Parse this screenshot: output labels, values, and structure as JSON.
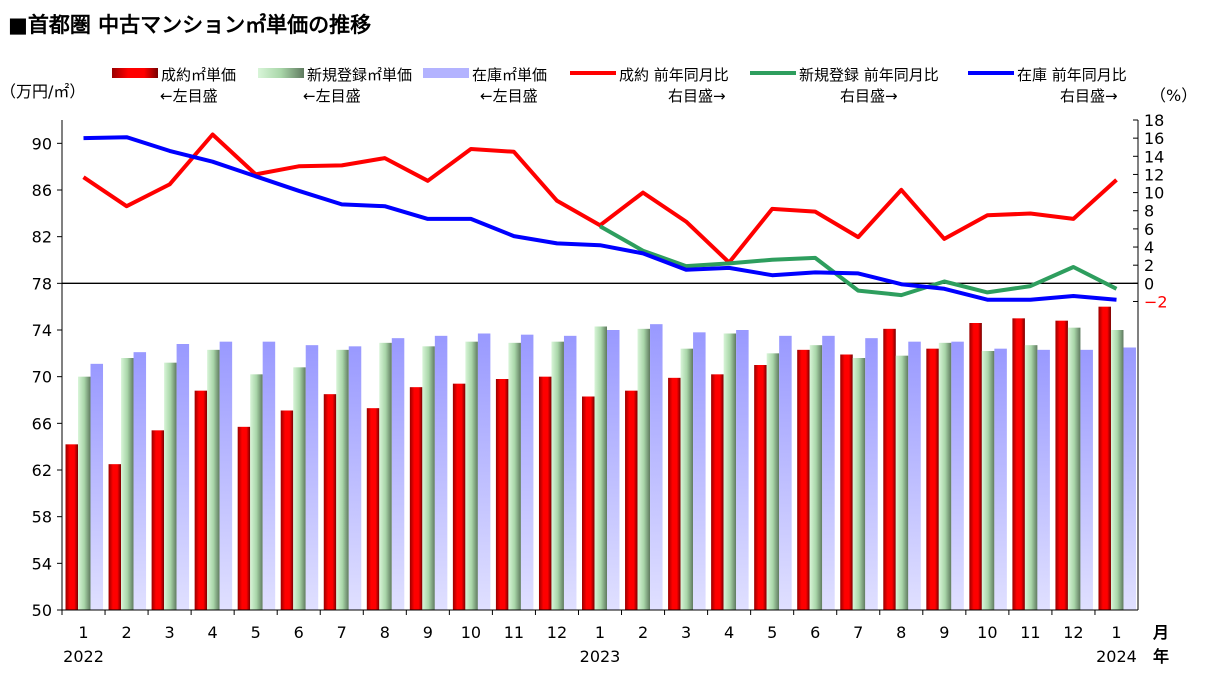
{
  "chart_data": {
    "type": "bar+line",
    "title": "■首都圏 中古マンション㎡単価の推移",
    "left_axis": {
      "unit": "（万円/㎡）",
      "range": [
        50,
        92
      ],
      "ticks": [
        50,
        54,
        58,
        62,
        66,
        70,
        74,
        78,
        82,
        86,
        90
      ]
    },
    "right_axis": {
      "unit": "（%）",
      "range": [
        -36,
        18
      ],
      "ticks": [
        18,
        16,
        14,
        12,
        10,
        8,
        6,
        4,
        2,
        0,
        -2
      ],
      "negative_tick_color": "#ff0000"
    },
    "x_unit_month": "月",
    "x_unit_year": "年",
    "categories": [
      "1",
      "2",
      "3",
      "4",
      "5",
      "6",
      "7",
      "8",
      "9",
      "10",
      "11",
      "12",
      "1",
      "2",
      "3",
      "4",
      "5",
      "6",
      "7",
      "8",
      "9",
      "10",
      "11",
      "12",
      "1"
    ],
    "year_labels": [
      {
        "index": 0,
        "label": "2022"
      },
      {
        "index": 12,
        "label": "2023"
      },
      {
        "index": 24,
        "label": "2024"
      }
    ],
    "reference_line": {
      "value": 0,
      "axis": "right",
      "color": "#000000"
    },
    "bar_series": [
      {
        "name": "成約㎡単価",
        "note": "←左目盛",
        "color": "#ff0000",
        "values": [
          64.2,
          62.5,
          65.4,
          68.8,
          65.7,
          67.1,
          68.5,
          67.3,
          69.1,
          69.4,
          69.8,
          70.0,
          68.3,
          68.8,
          69.9,
          70.2,
          71.0,
          72.3,
          71.9,
          74.1,
          72.4,
          74.6,
          75.0,
          74.8,
          76.0
        ]
      },
      {
        "name": "新規登録㎡単価",
        "note": "←左目盛",
        "color": "#8fbf8f",
        "values": [
          70.0,
          71.6,
          71.2,
          72.3,
          70.2,
          70.8,
          72.3,
          72.9,
          72.6,
          73.0,
          72.9,
          73.0,
          74.3,
          74.1,
          72.4,
          73.7,
          72.0,
          72.7,
          71.6,
          71.8,
          72.9,
          72.2,
          72.7,
          74.2,
          74.0
        ]
      },
      {
        "name": "在庫㎡単価",
        "note": "←左目盛",
        "color": "#9999ff",
        "values": [
          71.1,
          72.1,
          72.8,
          73.0,
          73.0,
          72.7,
          72.6,
          73.3,
          73.5,
          73.7,
          73.6,
          73.5,
          74.0,
          74.5,
          73.8,
          74.0,
          73.5,
          73.5,
          73.3,
          73.0,
          73.0,
          72.4,
          72.3,
          72.3,
          72.5
        ]
      }
    ],
    "line_series": [
      {
        "name": "成約 前年同月比",
        "note": "右目盛→",
        "color": "#ff0000",
        "values": [
          11.7,
          8.5,
          10.9,
          16.4,
          12.0,
          12.9,
          13.0,
          13.8,
          11.3,
          14.8,
          14.5,
          9.1,
          6.4,
          10.0,
          6.8,
          2.3,
          8.2,
          7.9,
          5.1,
          10.3,
          4.9,
          7.5,
          7.7,
          7.1,
          11.4
        ]
      },
      {
        "name": "新規登録 前年同月比",
        "note": "右目盛→",
        "color": "#2e9e5e",
        "values": [
          null,
          null,
          null,
          null,
          null,
          null,
          null,
          null,
          null,
          null,
          null,
          null,
          6.3,
          3.6,
          1.9,
          2.2,
          2.6,
          2.8,
          -0.8,
          -1.3,
          0.2,
          -1.0,
          -0.3,
          1.8,
          -0.6
        ]
      },
      {
        "name": "在庫 前年同月比",
        "note": "右目盛→",
        "color": "#0000ff",
        "values": [
          16.0,
          16.1,
          14.6,
          13.4,
          11.8,
          10.2,
          8.7,
          8.5,
          7.1,
          7.1,
          5.2,
          4.4,
          4.2,
          3.3,
          1.5,
          1.7,
          0.9,
          1.2,
          1.1,
          -0.1,
          -0.6,
          -1.8,
          -1.8,
          -1.4,
          -1.8
        ]
      }
    ],
    "legend_placement": "top"
  }
}
